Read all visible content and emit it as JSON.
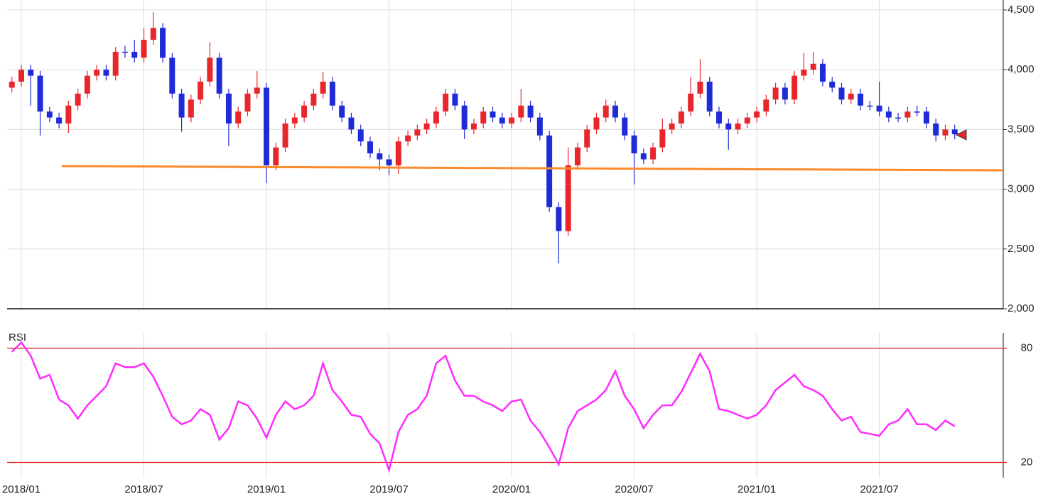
{
  "chart_data": [
    {
      "type": "candlestick",
      "categories": [
        null,
        "2018/01",
        null,
        null,
        null,
        null,
        null,
        null,
        null,
        null,
        null,
        null,
        null,
        null,
        "2018/07",
        null,
        null,
        null,
        null,
        null,
        null,
        null,
        null,
        null,
        null,
        null,
        null,
        "2019/01",
        null,
        null,
        null,
        null,
        null,
        null,
        null,
        null,
        null,
        null,
        null,
        null,
        "2019/07",
        null,
        null,
        null,
        null,
        null,
        null,
        null,
        null,
        null,
        null,
        null,
        null,
        "2020/01",
        null,
        null,
        null,
        null,
        null,
        null,
        null,
        null,
        null,
        null,
        null,
        null,
        "2020/07",
        null,
        null,
        null,
        null,
        null,
        null,
        null,
        null,
        null,
        null,
        null,
        null,
        "2021/01",
        null,
        null,
        null,
        null,
        null,
        null,
        null,
        null,
        null,
        null,
        null,
        null,
        "2021/07",
        null,
        null,
        null,
        null,
        null,
        null,
        null,
        null
      ],
      "open": [
        3850,
        3900,
        4000,
        3950,
        3650,
        3600,
        3550,
        3700,
        3800,
        3950,
        4000,
        3950,
        4150,
        4150,
        4100,
        4250,
        4350,
        4100,
        3800,
        3600,
        3750,
        3900,
        4100,
        3800,
        3550,
        3650,
        3800,
        3850,
        3200,
        3350,
        3550,
        3600,
        3700,
        3800,
        3900,
        3700,
        3600,
        3500,
        3400,
        3300,
        3250,
        3200,
        3400,
        3450,
        3500,
        3550,
        3650,
        3800,
        3700,
        3500,
        3550,
        3650,
        3600,
        3550,
        3600,
        3700,
        3600,
        3450,
        2850,
        2650,
        3200,
        3350,
        3500,
        3600,
        3700,
        3600,
        3450,
        3300,
        3250,
        3350,
        3500,
        3550,
        3650,
        3800,
        3900,
        3650,
        3550,
        3500,
        3550,
        3600,
        3650,
        3750,
        3850,
        3750,
        3950,
        4000,
        4050,
        3900,
        3850,
        3750,
        3800,
        3700,
        3700,
        3650,
        3600,
        3600,
        3650,
        3650,
        3550,
        3450,
        3500
      ],
      "high": [
        3940,
        4040,
        4040,
        3990,
        3690,
        3640,
        3740,
        3840,
        3990,
        4040,
        4040,
        4190,
        4200,
        4250,
        4350,
        4480,
        4390,
        4140,
        3840,
        3790,
        3940,
        4230,
        4140,
        3840,
        3690,
        3840,
        3990,
        3890,
        3390,
        3590,
        3640,
        3740,
        3840,
        3980,
        3940,
        3740,
        3640,
        3540,
        3440,
        3340,
        3290,
        3440,
        3490,
        3540,
        3590,
        3690,
        3840,
        3840,
        3740,
        3590,
        3690,
        3690,
        3640,
        3640,
        3840,
        3740,
        3640,
        3490,
        2890,
        3350,
        3390,
        3540,
        3640,
        3750,
        3740,
        3640,
        3490,
        3340,
        3390,
        3590,
        3590,
        3690,
        3940,
        4090,
        3940,
        3690,
        3590,
        3590,
        3640,
        3690,
        3790,
        3890,
        3890,
        3990,
        4140,
        4150,
        4090,
        3940,
        3890,
        3840,
        3840,
        3740,
        3900,
        3690,
        3640,
        3690,
        3700,
        3690,
        3590,
        3540,
        3540
      ],
      "low": [
        3810,
        3860,
        3700,
        3450,
        3560,
        3510,
        3470,
        3660,
        3760,
        3910,
        3910,
        3910,
        4100,
        4060,
        4060,
        4210,
        4060,
        3760,
        3480,
        3560,
        3710,
        3860,
        3760,
        3360,
        3510,
        3610,
        3760,
        3050,
        3160,
        3310,
        3510,
        3560,
        3660,
        3760,
        3660,
        3560,
        3460,
        3360,
        3260,
        3160,
        3120,
        3130,
        3360,
        3410,
        3460,
        3510,
        3610,
        3660,
        3420,
        3460,
        3510,
        3560,
        3510,
        3510,
        3560,
        3560,
        3410,
        2810,
        2380,
        2610,
        3160,
        3310,
        3460,
        3560,
        3560,
        3410,
        3040,
        3210,
        3210,
        3310,
        3460,
        3510,
        3610,
        3760,
        3610,
        3510,
        3330,
        3460,
        3510,
        3560,
        3610,
        3710,
        3710,
        3710,
        3910,
        3960,
        3860,
        3810,
        3710,
        3710,
        3660,
        3660,
        3610,
        3560,
        3560,
        3560,
        3610,
        3510,
        3400,
        3410,
        3420
      ],
      "close": [
        3900,
        4000,
        3950,
        3650,
        3600,
        3550,
        3700,
        3800,
        3950,
        4000,
        3950,
        4150,
        4150,
        4100,
        4250,
        4350,
        4100,
        3800,
        3600,
        3750,
        3900,
        4100,
        3800,
        3550,
        3650,
        3800,
        3850,
        3200,
        3350,
        3550,
        3600,
        3700,
        3800,
        3900,
        3700,
        3600,
        3500,
        3400,
        3300,
        3250,
        3200,
        3400,
        3450,
        3500,
        3550,
        3650,
        3800,
        3700,
        3500,
        3550,
        3650,
        3600,
        3550,
        3600,
        3700,
        3600,
        3450,
        2850,
        2650,
        3200,
        3350,
        3500,
        3600,
        3700,
        3600,
        3450,
        3300,
        3250,
        3350,
        3500,
        3550,
        3650,
        3800,
        3900,
        3650,
        3550,
        3500,
        3550,
        3600,
        3650,
        3750,
        3850,
        3750,
        3950,
        4000,
        4050,
        3900,
        3850,
        3750,
        3800,
        3700,
        3700,
        3650,
        3600,
        3600,
        3650,
        3650,
        3550,
        3450,
        3500,
        3460
      ],
      "up_color": "#e8262b",
      "down_color": "#1f2bd6",
      "ylim": [
        2000,
        4500
      ],
      "yticks": [
        {
          "value": 2000,
          "label": "2,000"
        },
        {
          "value": 2500,
          "label": "2,500"
        },
        {
          "value": 3000,
          "label": "3,000"
        },
        {
          "value": 3500,
          "label": "3,500"
        },
        {
          "value": 4000,
          "label": "4,000"
        },
        {
          "value": 4500,
          "label": "4,500"
        }
      ],
      "grid": true
    },
    {
      "type": "line",
      "title": "RSI",
      "series": [
        {
          "color": "#ff2bff",
          "values": [
            78,
            83,
            76,
            64,
            66,
            53,
            50,
            43,
            50,
            55,
            60,
            72,
            70,
            70,
            72,
            65,
            55,
            44,
            40,
            42,
            48,
            45,
            32,
            38,
            52,
            50,
            43,
            33,
            45,
            52,
            48,
            50,
            55,
            72,
            58,
            52,
            45,
            44,
            35,
            30,
            16,
            36,
            45,
            48,
            55,
            72,
            76,
            63,
            55,
            55,
            52,
            50,
            47,
            52,
            53,
            42,
            36,
            28,
            19,
            38,
            47,
            50,
            53,
            58,
            68,
            55,
            48,
            38,
            45,
            50,
            50,
            57,
            67,
            77,
            68,
            48,
            47,
            45,
            43,
            45,
            50,
            58,
            62,
            66,
            60,
            58,
            55,
            48,
            42,
            44,
            36,
            35,
            34,
            40,
            42,
            48,
            40,
            40,
            37,
            42,
            39
          ]
        }
      ],
      "ylim": [
        12,
        88
      ],
      "yticks": [
        20,
        80
      ],
      "level_color": "#e02020"
    }
  ]
}
